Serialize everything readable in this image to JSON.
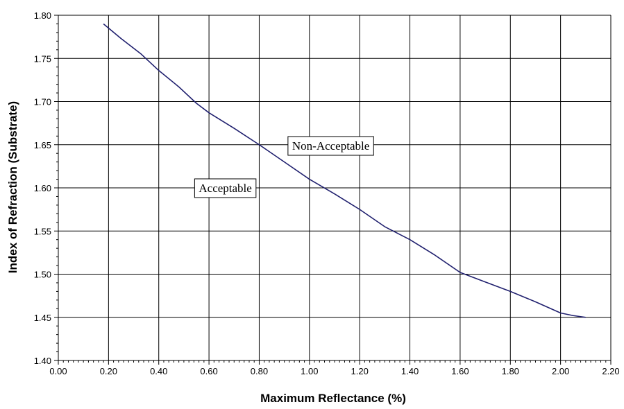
{
  "chart_data": {
    "type": "line",
    "title": "",
    "xlabel": "Maximum Reflectance (%)",
    "ylabel": "Index of Refraction (Substrate)",
    "xlim": [
      0.0,
      2.2
    ],
    "ylim": [
      1.4,
      1.8
    ],
    "x_ticks": [
      "0.00",
      "0.20",
      "0.40",
      "0.60",
      "0.80",
      "1.00",
      "1.20",
      "1.40",
      "1.60",
      "1.80",
      "2.00",
      "2.20"
    ],
    "y_ticks": [
      "1.40",
      "1.45",
      "1.50",
      "1.55",
      "1.60",
      "1.65",
      "1.70",
      "1.75",
      "1.80"
    ],
    "grid": true,
    "line_color": "#1f1f6e",
    "series": [
      {
        "x": [
          0.18,
          0.25,
          0.33,
          0.4,
          0.48,
          0.55,
          0.6,
          0.7,
          0.8,
          0.9,
          1.0,
          1.1,
          1.2,
          1.3,
          1.4,
          1.5,
          1.6,
          1.7,
          1.8,
          1.9,
          2.0,
          2.05,
          2.1
        ],
        "y": [
          1.79,
          1.773,
          1.755,
          1.736,
          1.717,
          1.698,
          1.687,
          1.669,
          1.65,
          1.63,
          1.61,
          1.593,
          1.575,
          1.555,
          1.54,
          1.522,
          1.502,
          1.491,
          1.48,
          1.468,
          1.455,
          1.452,
          1.45
        ]
      }
    ],
    "annotations": [
      {
        "text": "Non-Acceptable",
        "x": 1.085,
        "y": 1.649
      },
      {
        "text": "Acceptable",
        "x": 0.665,
        "y": 1.6
      }
    ]
  }
}
